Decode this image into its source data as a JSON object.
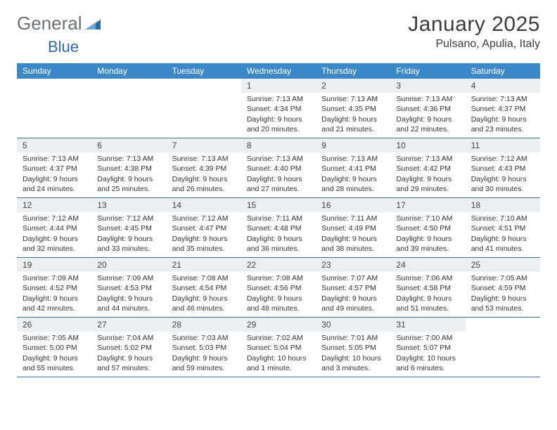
{
  "logo": {
    "text1": "General",
    "text2": "Blue"
  },
  "header": {
    "month": "January 2025",
    "location": "Pulsano, Apulia, Italy"
  },
  "colors": {
    "header_bar": "#3b87c8",
    "header_text": "#ffffff",
    "daynum_bg": "#eceff1",
    "row_border": "#3b74a5",
    "body_text": "#333333",
    "logo_gray": "#6b7278",
    "logo_blue": "#2f6aa8",
    "background": "#ffffff"
  },
  "weekdays": [
    "Sunday",
    "Monday",
    "Tuesday",
    "Wednesday",
    "Thursday",
    "Friday",
    "Saturday"
  ],
  "weeks": [
    [
      {
        "n": "",
        "sunrise": "",
        "sunset": "",
        "daylight": ""
      },
      {
        "n": "",
        "sunrise": "",
        "sunset": "",
        "daylight": ""
      },
      {
        "n": "",
        "sunrise": "",
        "sunset": "",
        "daylight": ""
      },
      {
        "n": "1",
        "sunrise": "Sunrise: 7:13 AM",
        "sunset": "Sunset: 4:34 PM",
        "daylight": "Daylight: 9 hours and 20 minutes."
      },
      {
        "n": "2",
        "sunrise": "Sunrise: 7:13 AM",
        "sunset": "Sunset: 4:35 PM",
        "daylight": "Daylight: 9 hours and 21 minutes."
      },
      {
        "n": "3",
        "sunrise": "Sunrise: 7:13 AM",
        "sunset": "Sunset: 4:36 PM",
        "daylight": "Daylight: 9 hours and 22 minutes."
      },
      {
        "n": "4",
        "sunrise": "Sunrise: 7:13 AM",
        "sunset": "Sunset: 4:37 PM",
        "daylight": "Daylight: 9 hours and 23 minutes."
      }
    ],
    [
      {
        "n": "5",
        "sunrise": "Sunrise: 7:13 AM",
        "sunset": "Sunset: 4:37 PM",
        "daylight": "Daylight: 9 hours and 24 minutes."
      },
      {
        "n": "6",
        "sunrise": "Sunrise: 7:13 AM",
        "sunset": "Sunset: 4:38 PM",
        "daylight": "Daylight: 9 hours and 25 minutes."
      },
      {
        "n": "7",
        "sunrise": "Sunrise: 7:13 AM",
        "sunset": "Sunset: 4:39 PM",
        "daylight": "Daylight: 9 hours and 26 minutes."
      },
      {
        "n": "8",
        "sunrise": "Sunrise: 7:13 AM",
        "sunset": "Sunset: 4:40 PM",
        "daylight": "Daylight: 9 hours and 27 minutes."
      },
      {
        "n": "9",
        "sunrise": "Sunrise: 7:13 AM",
        "sunset": "Sunset: 4:41 PM",
        "daylight": "Daylight: 9 hours and 28 minutes."
      },
      {
        "n": "10",
        "sunrise": "Sunrise: 7:13 AM",
        "sunset": "Sunset: 4:42 PM",
        "daylight": "Daylight: 9 hours and 29 minutes."
      },
      {
        "n": "11",
        "sunrise": "Sunrise: 7:12 AM",
        "sunset": "Sunset: 4:43 PM",
        "daylight": "Daylight: 9 hours and 30 minutes."
      }
    ],
    [
      {
        "n": "12",
        "sunrise": "Sunrise: 7:12 AM",
        "sunset": "Sunset: 4:44 PM",
        "daylight": "Daylight: 9 hours and 32 minutes."
      },
      {
        "n": "13",
        "sunrise": "Sunrise: 7:12 AM",
        "sunset": "Sunset: 4:45 PM",
        "daylight": "Daylight: 9 hours and 33 minutes."
      },
      {
        "n": "14",
        "sunrise": "Sunrise: 7:12 AM",
        "sunset": "Sunset: 4:47 PM",
        "daylight": "Daylight: 9 hours and 35 minutes."
      },
      {
        "n": "15",
        "sunrise": "Sunrise: 7:11 AM",
        "sunset": "Sunset: 4:48 PM",
        "daylight": "Daylight: 9 hours and 36 minutes."
      },
      {
        "n": "16",
        "sunrise": "Sunrise: 7:11 AM",
        "sunset": "Sunset: 4:49 PM",
        "daylight": "Daylight: 9 hours and 38 minutes."
      },
      {
        "n": "17",
        "sunrise": "Sunrise: 7:10 AM",
        "sunset": "Sunset: 4:50 PM",
        "daylight": "Daylight: 9 hours and 39 minutes."
      },
      {
        "n": "18",
        "sunrise": "Sunrise: 7:10 AM",
        "sunset": "Sunset: 4:51 PM",
        "daylight": "Daylight: 9 hours and 41 minutes."
      }
    ],
    [
      {
        "n": "19",
        "sunrise": "Sunrise: 7:09 AM",
        "sunset": "Sunset: 4:52 PM",
        "daylight": "Daylight: 9 hours and 42 minutes."
      },
      {
        "n": "20",
        "sunrise": "Sunrise: 7:09 AM",
        "sunset": "Sunset: 4:53 PM",
        "daylight": "Daylight: 9 hours and 44 minutes."
      },
      {
        "n": "21",
        "sunrise": "Sunrise: 7:08 AM",
        "sunset": "Sunset: 4:54 PM",
        "daylight": "Daylight: 9 hours and 46 minutes."
      },
      {
        "n": "22",
        "sunrise": "Sunrise: 7:08 AM",
        "sunset": "Sunset: 4:56 PM",
        "daylight": "Daylight: 9 hours and 48 minutes."
      },
      {
        "n": "23",
        "sunrise": "Sunrise: 7:07 AM",
        "sunset": "Sunset: 4:57 PM",
        "daylight": "Daylight: 9 hours and 49 minutes."
      },
      {
        "n": "24",
        "sunrise": "Sunrise: 7:06 AM",
        "sunset": "Sunset: 4:58 PM",
        "daylight": "Daylight: 9 hours and 51 minutes."
      },
      {
        "n": "25",
        "sunrise": "Sunrise: 7:05 AM",
        "sunset": "Sunset: 4:59 PM",
        "daylight": "Daylight: 9 hours and 53 minutes."
      }
    ],
    [
      {
        "n": "26",
        "sunrise": "Sunrise: 7:05 AM",
        "sunset": "Sunset: 5:00 PM",
        "daylight": "Daylight: 9 hours and 55 minutes."
      },
      {
        "n": "27",
        "sunrise": "Sunrise: 7:04 AM",
        "sunset": "Sunset: 5:02 PM",
        "daylight": "Daylight: 9 hours and 57 minutes."
      },
      {
        "n": "28",
        "sunrise": "Sunrise: 7:03 AM",
        "sunset": "Sunset: 5:03 PM",
        "daylight": "Daylight: 9 hours and 59 minutes."
      },
      {
        "n": "29",
        "sunrise": "Sunrise: 7:02 AM",
        "sunset": "Sunset: 5:04 PM",
        "daylight": "Daylight: 10 hours and 1 minute."
      },
      {
        "n": "30",
        "sunrise": "Sunrise: 7:01 AM",
        "sunset": "Sunset: 5:05 PM",
        "daylight": "Daylight: 10 hours and 3 minutes."
      },
      {
        "n": "31",
        "sunrise": "Sunrise: 7:00 AM",
        "sunset": "Sunset: 5:07 PM",
        "daylight": "Daylight: 10 hours and 6 minutes."
      },
      {
        "n": "",
        "sunrise": "",
        "sunset": "",
        "daylight": ""
      }
    ]
  ]
}
